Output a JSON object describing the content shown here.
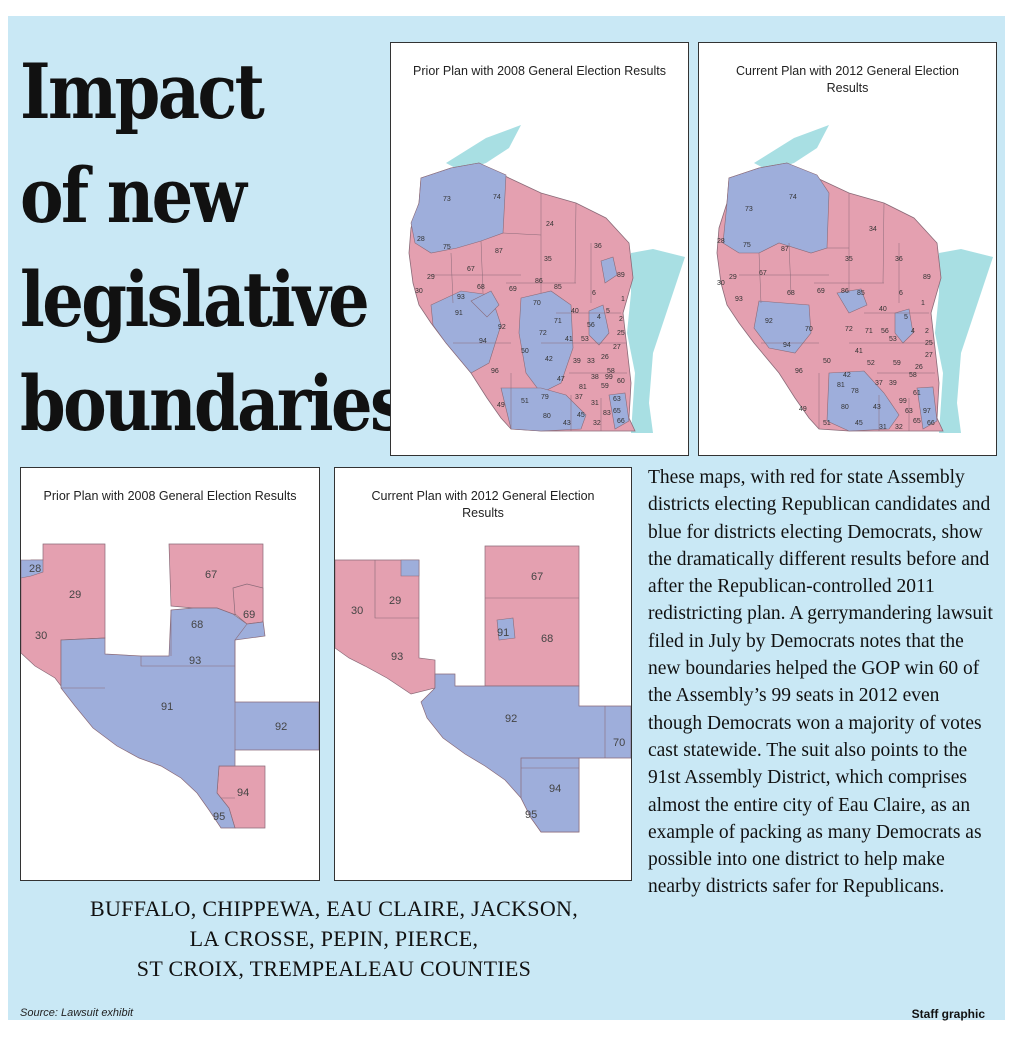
{
  "headline": [
    "Impact",
    "of new",
    "legislative",
    "boundaries"
  ],
  "state_maps": [
    {
      "title": "Prior Plan with 2008 General Election Results",
      "labels": [
        "73",
        "74",
        "24",
        "36",
        "28",
        "75",
        "87",
        "29",
        "67",
        "35",
        "89",
        "30",
        "93",
        "68",
        "69",
        "86",
        "85",
        "70",
        "6",
        "91",
        "92",
        "71",
        "40",
        "56",
        "5",
        "72",
        "41",
        "53",
        "25",
        "94",
        "50",
        "42",
        "96",
        "47",
        "49",
        "51",
        "79",
        "37",
        "31",
        "80",
        "43",
        "45",
        "32",
        "58",
        "60",
        "59",
        "63",
        "65",
        "66",
        "81",
        "1",
        "2",
        "4",
        "27",
        "26",
        "33",
        "39",
        "38",
        "99",
        "83"
      ]
    },
    {
      "title": "Current Plan with 2012 General Election Results",
      "labels": [
        "74",
        "73",
        "34",
        "28",
        "75",
        "87",
        "36",
        "29",
        "67",
        "35",
        "89",
        "30",
        "93",
        "68",
        "69",
        "86",
        "85",
        "6",
        "92",
        "70",
        "72",
        "40",
        "56",
        "5",
        "1",
        "94",
        "71",
        "41",
        "53",
        "4",
        "2",
        "50",
        "42",
        "52",
        "26",
        "96",
        "81",
        "78",
        "37",
        "39",
        "99",
        "49",
        "51",
        "80",
        "45",
        "31",
        "32",
        "43",
        "58",
        "59",
        "61",
        "63",
        "97",
        "27",
        "25",
        "65",
        "66"
      ]
    }
  ],
  "detail_maps": [
    {
      "title": "Prior Plan with 2008 General Election Results",
      "labels": [
        "28",
        "29",
        "30",
        "67",
        "68",
        "69",
        "93",
        "91",
        "92",
        "94",
        "95"
      ]
    },
    {
      "title": "Current Plan with 2012 General Election Results",
      "labels": [
        "29",
        "30",
        "93",
        "67",
        "91",
        "68",
        "92",
        "70",
        "94",
        "95"
      ]
    }
  ],
  "body": "These maps, with red for state Assembly districts electing Republican candidates and blue for districts electing Democrats, show the dramatically different results before and after the Republican-controlled 2011 redistricting plan. A gerrymandering lawsuit filed in July by Democrats notes that the new boundaries helped the GOP win 60 of the Assembly’s 99 seats in 2012 even though Democrats won a majority of votes cast statewide. The suit also points to the 91st Assembly District, which comprises almost the entire city of Eau Claire, as an example of packing as many Democrats as possible into one district to help make nearby districts safer for Republicans.",
  "counties": [
    "BUFFALO, CHIPPEWA, EAU CLAIRE, JACKSON,",
    "LA CROSSE, PEPIN, PIERCE,",
    "ST CROIX, TREMPEALEAU COUNTIES"
  ],
  "source": "Source: Lawsuit exhibit",
  "credit": "Staff graphic",
  "colors": {
    "republican": "#e4a0b0",
    "democrat": "#9eaedb",
    "water": "#a8dfe3",
    "background": "#c9e8f5"
  }
}
